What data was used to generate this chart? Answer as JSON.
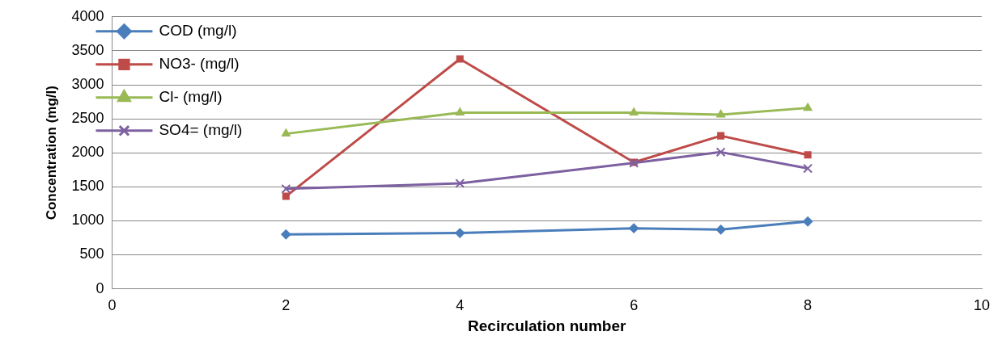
{
  "chart_data": {
    "type": "line",
    "xlabel": "Recirculation number",
    "ylabel": "Concentration (mg/l)",
    "x": [
      2,
      4,
      6,
      7,
      8
    ],
    "xlim": [
      0,
      10
    ],
    "xticks": [
      0,
      2,
      4,
      6,
      8,
      10
    ],
    "ylim": [
      0,
      4000
    ],
    "yticks": [
      0,
      500,
      1000,
      1500,
      2000,
      2500,
      3000,
      3500,
      4000
    ],
    "grid": "y",
    "legend": "top left",
    "line_style": "solid",
    "series": [
      {
        "name": "COD (mg/l)",
        "color": "#4a7ebb",
        "marker": "diamond",
        "values": [
          800,
          820,
          890,
          870,
          990
        ]
      },
      {
        "name": "NO3- (mg/l)",
        "color": "#be4b48",
        "marker": "square",
        "values": [
          1360,
          3380,
          1860,
          2250,
          1970
        ]
      },
      {
        "name": "Cl- (mg/l)",
        "color": "#98b954",
        "marker": "triangle",
        "values": [
          2280,
          2590,
          2590,
          2560,
          2660
        ]
      },
      {
        "name": "SO4= (mg/l)",
        "color": "#7d60a0",
        "marker": "cross",
        "values": [
          1470,
          1550,
          1850,
          2010,
          1770
        ]
      }
    ]
  }
}
